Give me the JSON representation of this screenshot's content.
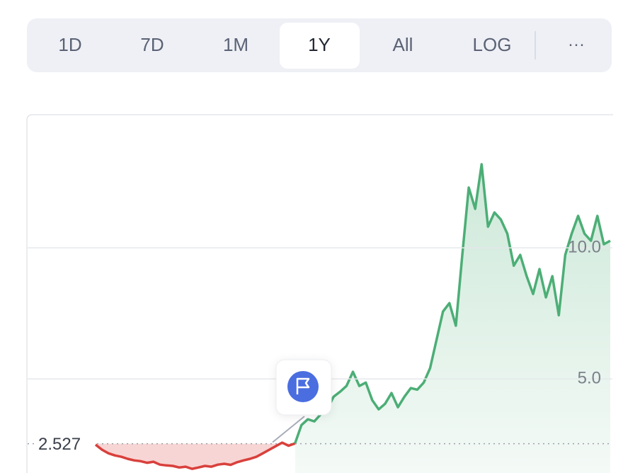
{
  "tabs": [
    {
      "label": "1D"
    },
    {
      "label": "7D"
    },
    {
      "label": "1M"
    },
    {
      "label": "1Y",
      "selected": true
    },
    {
      "label": "All"
    },
    {
      "label": "LOG"
    }
  ],
  "more": "···",
  "chart_data": {
    "type": "line",
    "series": [
      {
        "color": "#d9403c",
        "values": [
          2.49,
          2.3,
          2.16,
          2.08,
          2.03,
          1.95,
          1.89,
          1.86,
          1.8,
          1.84,
          1.73,
          1.7,
          1.68,
          1.62,
          1.65,
          1.57,
          1.62,
          1.68,
          1.65,
          1.73,
          1.76,
          1.72,
          1.82,
          1.89,
          1.95,
          2.03,
          2.16,
          2.3,
          2.43,
          2.57,
          2.45,
          2.54,
          null,
          null,
          null,
          null,
          null,
          null,
          null,
          null,
          null,
          null,
          null,
          null,
          null,
          null,
          null,
          null,
          null,
          null,
          null,
          null,
          null,
          null,
          null,
          null,
          null,
          null,
          null,
          null,
          null,
          null,
          null,
          null,
          null,
          null,
          null,
          null,
          null,
          null,
          null,
          null,
          null,
          null,
          null,
          null,
          null,
          null,
          null,
          null,
          null
        ]
      },
      {
        "color": "#4cae76",
        "values": [
          null,
          null,
          null,
          null,
          null,
          null,
          null,
          null,
          null,
          null,
          null,
          null,
          null,
          null,
          null,
          null,
          null,
          null,
          null,
          null,
          null,
          null,
          null,
          null,
          null,
          null,
          null,
          null,
          null,
          null,
          null,
          2.54,
          3.24,
          3.46,
          3.38,
          3.65,
          3.84,
          4.32,
          4.51,
          4.73,
          5.27,
          4.73,
          4.86,
          4.19,
          3.84,
          4.05,
          4.46,
          3.92,
          4.32,
          4.65,
          4.59,
          4.86,
          5.41,
          6.49,
          7.57,
          7.89,
          7.03,
          9.73,
          12.3,
          11.49,
          13.19,
          10.81,
          11.35,
          11.08,
          10.54,
          9.32,
          9.73,
          8.92,
          8.24,
          9.19,
          8.11,
          8.92,
          7.43,
          9.73,
          10.54,
          11.22,
          10.54,
          10.27,
          11.22,
          10.14,
          10.27
        ]
      }
    ],
    "baseline": {
      "value": 2.527,
      "label": "2.527"
    },
    "ylim": [
      1.41,
      15.08
    ],
    "yticks": [
      {
        "value": 5,
        "label": "5.0"
      },
      {
        "value": 10,
        "label": "10.0"
      }
    ],
    "grid": true
  }
}
